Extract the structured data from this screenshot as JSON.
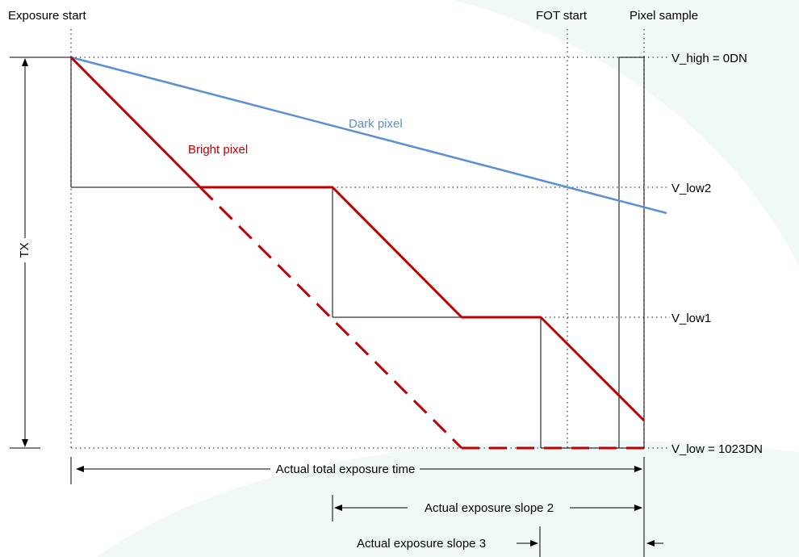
{
  "colors": {
    "bright_pixel": "#c00000",
    "dark_pixel": "#5b8fd4",
    "guides": "#444444",
    "background_wash": "#e6f2f2"
  },
  "top_labels": {
    "exposure_start": "Exposure start",
    "fot_start": "FOT start",
    "pixel_sample": "Pixel sample"
  },
  "levels": {
    "v_high": "V_high = 0DN",
    "v_low2": "V_low2",
    "v_low1": "V_low1",
    "v_low": "V_low = 1023DN"
  },
  "curves": {
    "dark": "Dark pixel",
    "bright": "Bright pixel"
  },
  "tx_label": "TX",
  "spans": {
    "total": "Actual total exposure time",
    "slope2": "Actual exposure slope 2",
    "slope3": "Actual exposure slope 3"
  }
}
